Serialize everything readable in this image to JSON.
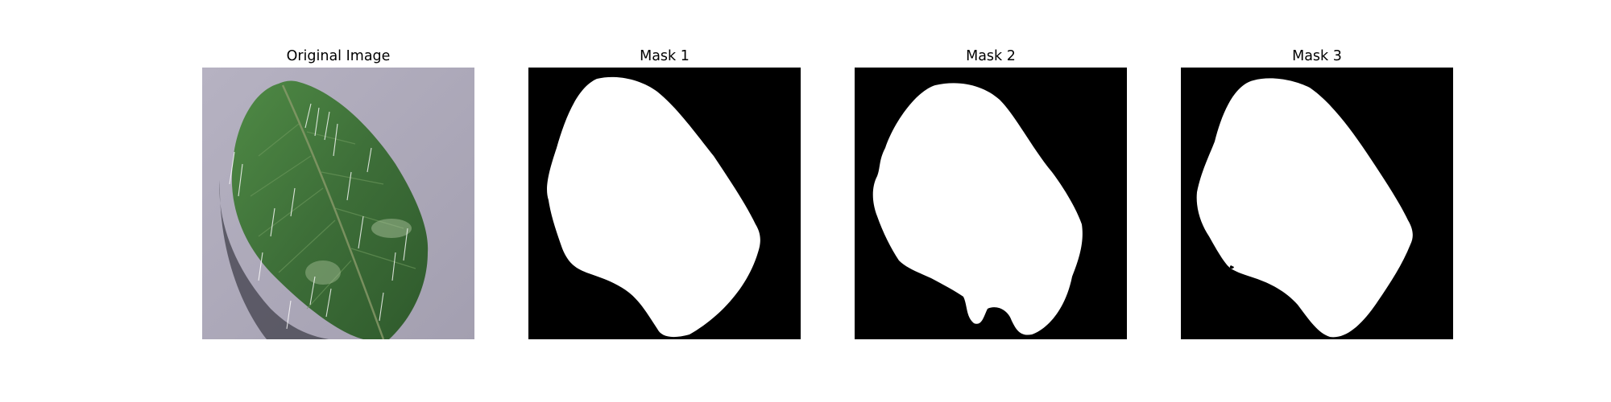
{
  "figure": {
    "panels": [
      {
        "title": "Original Image",
        "kind": "photo"
      },
      {
        "title": "Mask 1",
        "kind": "mask"
      },
      {
        "title": "Mask 2",
        "kind": "mask"
      },
      {
        "title": "Mask 3",
        "kind": "mask"
      }
    ]
  },
  "colors": {
    "mask_background": "#000000",
    "mask_foreground": "#ffffff",
    "photo_background": "#aaa6b6",
    "leaf_light": "#5a8a4c",
    "leaf_dark": "#2e5a2c",
    "leaf_shadow": "#4a4a56"
  },
  "icons": [
    "leaf-photo",
    "segmentation-mask"
  ]
}
